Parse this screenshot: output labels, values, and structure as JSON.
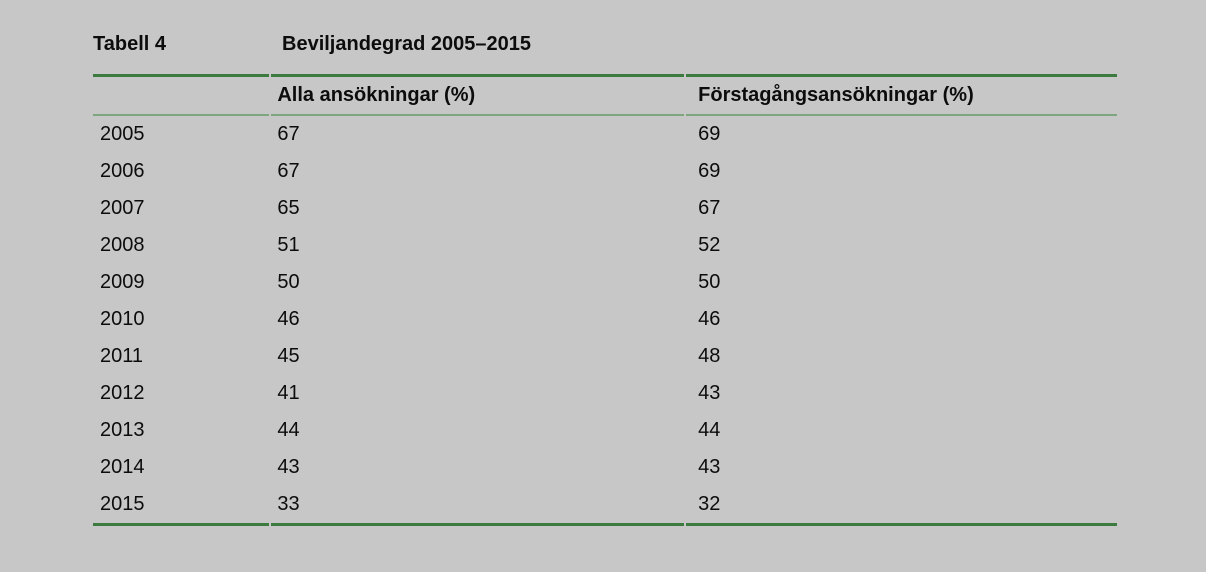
{
  "table": {
    "label": "Tabell 4",
    "title": "Beviljandegrad 2005–2015",
    "columns": [
      "",
      "Alla ansökningar (%)",
      "Förstagångsansökningar (%)"
    ],
    "rows": [
      {
        "year": "2005",
        "all": "67",
        "first": "69"
      },
      {
        "year": "2006",
        "all": "67",
        "first": "69"
      },
      {
        "year": "2007",
        "all": "65",
        "first": "67"
      },
      {
        "year": "2008",
        "all": "51",
        "first": "52"
      },
      {
        "year": "2009",
        "all": "50",
        "first": "50"
      },
      {
        "year": "2010",
        "all": "46",
        "first": "46"
      },
      {
        "year": "2011",
        "all": "45",
        "first": "48"
      },
      {
        "year": "2012",
        "all": "41",
        "first": "43"
      },
      {
        "year": "2013",
        "all": "44",
        "first": "44"
      },
      {
        "year": "2014",
        "all": "43",
        "first": "43"
      },
      {
        "year": "2015",
        "all": "33",
        "first": "32"
      }
    ]
  },
  "colors": {
    "background": "#c7c7c7",
    "text": "#0c0c0c",
    "rule_thick_green": "#3d7a40",
    "rule_thin_green": "#7da67f"
  }
}
